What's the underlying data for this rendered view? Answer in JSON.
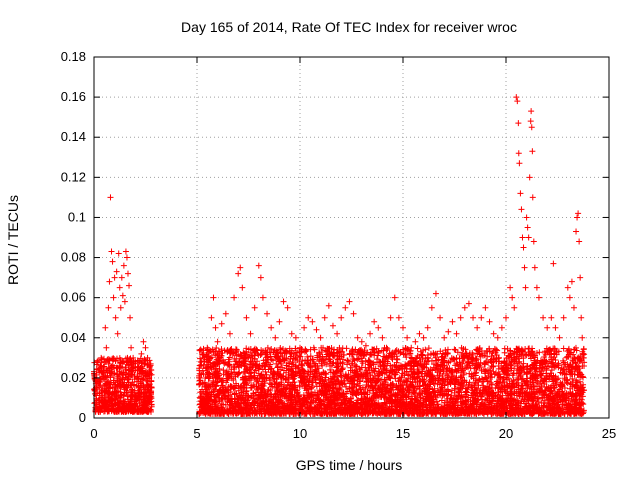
{
  "chart_data": {
    "type": "scatter",
    "title": "Day 165 of 2014, Rate Of TEC Index for receiver wroc",
    "xlabel": "GPS time / hours",
    "ylabel": "ROTI / TECUs",
    "xlim": [
      0,
      25
    ],
    "ylim": [
      0,
      0.18
    ],
    "x_ticks": [
      0,
      5,
      10,
      15,
      20,
      25
    ],
    "y_ticks": [
      0,
      0.02,
      0.04,
      0.06,
      0.08,
      0.1,
      0.12,
      0.14,
      0.16,
      0.18
    ],
    "x_tick_labels": [
      "0",
      "5",
      "10",
      "15",
      "20",
      "25"
    ],
    "y_tick_labels": [
      "0",
      "0.02",
      "0.04",
      "0.06",
      "0.08",
      "0.1",
      "0.12",
      "0.14",
      "0.16",
      "0.18"
    ],
    "grid": true,
    "marker": "+",
    "color": "#ff0000",
    "series": [
      {
        "name": "ROTI",
        "points": [
          [
            0.05,
            0.012
          ],
          [
            0.15,
            0.028
          ],
          [
            0.25,
            0.018
          ],
          [
            0.35,
            0.03
          ],
          [
            0.45,
            0.022
          ],
          [
            0.55,
            0.045
          ],
          [
            0.6,
            0.035
          ],
          [
            0.7,
            0.055
          ],
          [
            0.75,
            0.068
          ],
          [
            0.8,
            0.11
          ],
          [
            0.85,
            0.083
          ],
          [
            0.9,
            0.078
          ],
          [
            0.95,
            0.06
          ],
          [
            1.0,
            0.07
          ],
          [
            1.05,
            0.05
          ],
          [
            1.1,
            0.073
          ],
          [
            1.15,
            0.042
          ],
          [
            1.2,
            0.082
          ],
          [
            1.25,
            0.065
          ],
          [
            1.3,
            0.055
          ],
          [
            1.35,
            0.07
          ],
          [
            1.4,
            0.061
          ],
          [
            1.45,
            0.076
          ],
          [
            1.5,
            0.058
          ],
          [
            1.55,
            0.083
          ],
          [
            1.6,
            0.08
          ],
          [
            1.65,
            0.072
          ],
          [
            1.7,
            0.066
          ],
          [
            1.75,
            0.05
          ],
          [
            1.8,
            0.035
          ],
          [
            1.9,
            0.03
          ],
          [
            2.0,
            0.025
          ],
          [
            2.1,
            0.02
          ],
          [
            2.2,
            0.028
          ],
          [
            2.3,
            0.032
          ],
          [
            2.4,
            0.038
          ],
          [
            2.5,
            0.035
          ],
          [
            2.6,
            0.03
          ],
          [
            2.7,
            0.025
          ],
          [
            2.8,
            0.015
          ],
          [
            5.1,
            0.02
          ],
          [
            5.3,
            0.03
          ],
          [
            5.5,
            0.035
          ],
          [
            5.7,
            0.05
          ],
          [
            5.8,
            0.06
          ],
          [
            5.9,
            0.045
          ],
          [
            6.0,
            0.038
          ],
          [
            6.2,
            0.047
          ],
          [
            6.4,
            0.052
          ],
          [
            6.6,
            0.042
          ],
          [
            6.8,
            0.06
          ],
          [
            7.0,
            0.072
          ],
          [
            7.1,
            0.075
          ],
          [
            7.2,
            0.065
          ],
          [
            7.4,
            0.05
          ],
          [
            7.6,
            0.042
          ],
          [
            7.8,
            0.055
          ],
          [
            8.0,
            0.076
          ],
          [
            8.1,
            0.07
          ],
          [
            8.2,
            0.06
          ],
          [
            8.4,
            0.052
          ],
          [
            8.6,
            0.045
          ],
          [
            8.8,
            0.04
          ],
          [
            9.0,
            0.048
          ],
          [
            9.2,
            0.058
          ],
          [
            9.4,
            0.055
          ],
          [
            9.6,
            0.042
          ],
          [
            9.8,
            0.04
          ],
          [
            10.0,
            0.035
          ],
          [
            10.2,
            0.045
          ],
          [
            10.4,
            0.05
          ],
          [
            10.6,
            0.048
          ],
          [
            10.8,
            0.044
          ],
          [
            11.0,
            0.04
          ],
          [
            11.2,
            0.05
          ],
          [
            11.4,
            0.056
          ],
          [
            11.6,
            0.046
          ],
          [
            11.8,
            0.042
          ],
          [
            12.0,
            0.05
          ],
          [
            12.2,
            0.055
          ],
          [
            12.4,
            0.058
          ],
          [
            12.6,
            0.052
          ],
          [
            12.8,
            0.04
          ],
          [
            13.0,
            0.038
          ],
          [
            13.2,
            0.036
          ],
          [
            13.4,
            0.042
          ],
          [
            13.6,
            0.048
          ],
          [
            13.8,
            0.045
          ],
          [
            14.0,
            0.04
          ],
          [
            14.2,
            0.035
          ],
          [
            14.4,
            0.05
          ],
          [
            14.6,
            0.06
          ],
          [
            14.8,
            0.05
          ],
          [
            15.0,
            0.045
          ],
          [
            15.2,
            0.04
          ],
          [
            15.4,
            0.035
          ],
          [
            15.6,
            0.038
          ],
          [
            15.8,
            0.042
          ],
          [
            16.0,
            0.04
          ],
          [
            16.2,
            0.045
          ],
          [
            16.4,
            0.055
          ],
          [
            16.6,
            0.062
          ],
          [
            16.8,
            0.05
          ],
          [
            17.0,
            0.04
          ],
          [
            17.2,
            0.043
          ],
          [
            17.4,
            0.048
          ],
          [
            17.6,
            0.042
          ],
          [
            17.8,
            0.05
          ],
          [
            18.0,
            0.055
          ],
          [
            18.2,
            0.057
          ],
          [
            18.4,
            0.05
          ],
          [
            18.6,
            0.045
          ],
          [
            18.8,
            0.05
          ],
          [
            19.0,
            0.055
          ],
          [
            19.2,
            0.048
          ],
          [
            19.4,
            0.042
          ],
          [
            19.6,
            0.04
          ],
          [
            19.8,
            0.045
          ],
          [
            20.0,
            0.05
          ],
          [
            20.2,
            0.065
          ],
          [
            20.3,
            0.06
          ],
          [
            20.4,
            0.055
          ],
          [
            20.5,
            0.16
          ],
          [
            20.55,
            0.158
          ],
          [
            20.6,
            0.147
          ],
          [
            20.62,
            0.132
          ],
          [
            20.65,
            0.127
          ],
          [
            20.7,
            0.112
          ],
          [
            20.75,
            0.104
          ],
          [
            20.8,
            0.09
          ],
          [
            20.85,
            0.085
          ],
          [
            20.9,
            0.075
          ],
          [
            20.95,
            0.065
          ],
          [
            21.0,
            0.1
          ],
          [
            21.05,
            0.095
          ],
          [
            21.1,
            0.09
          ],
          [
            21.15,
            0.12
          ],
          [
            21.2,
            0.148
          ],
          [
            21.22,
            0.153
          ],
          [
            21.25,
            0.145
          ],
          [
            21.28,
            0.133
          ],
          [
            21.3,
            0.11
          ],
          [
            21.35,
            0.088
          ],
          [
            21.4,
            0.075
          ],
          [
            21.5,
            0.065
          ],
          [
            21.6,
            0.06
          ],
          [
            21.8,
            0.05
          ],
          [
            22.0,
            0.045
          ],
          [
            22.2,
            0.05
          ],
          [
            22.3,
            0.077
          ],
          [
            22.4,
            0.045
          ],
          [
            22.6,
            0.04
          ],
          [
            22.8,
            0.05
          ],
          [
            23.0,
            0.065
          ],
          [
            23.1,
            0.06
          ],
          [
            23.2,
            0.068
          ],
          [
            23.3,
            0.055
          ],
          [
            23.4,
            0.093
          ],
          [
            23.45,
            0.1
          ],
          [
            23.5,
            0.102
          ],
          [
            23.55,
            0.088
          ],
          [
            23.6,
            0.07
          ],
          [
            23.65,
            0.05
          ],
          [
            23.7,
            0.04
          ],
          [
            23.75,
            0.03
          ]
        ]
      }
    ],
    "dense_band": {
      "description_segments": [
        {
          "x_start": 0.0,
          "x_end": 2.8,
          "y_min": 0.003,
          "y_max": 0.03
        },
        {
          "x_start": 5.1,
          "x_end": 23.8,
          "y_min": 0.002,
          "y_max": 0.035
        }
      ]
    }
  }
}
